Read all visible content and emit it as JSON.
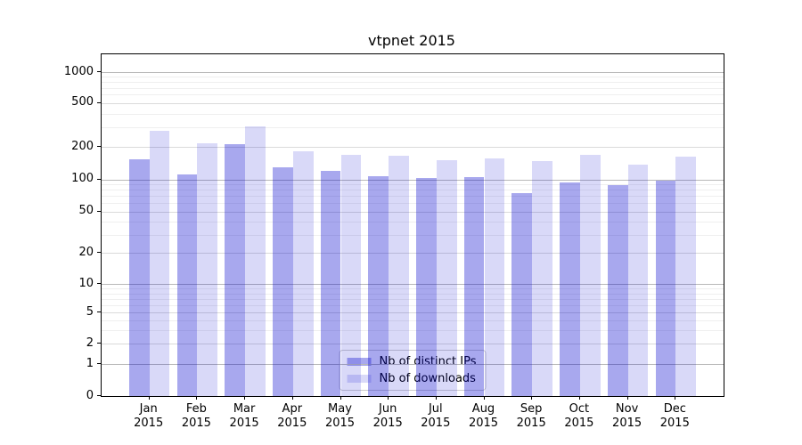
{
  "chart_data": {
    "type": "bar",
    "title": "vtpnet 2015",
    "categories": [
      "Jan",
      "Feb",
      "Mar",
      "Apr",
      "May",
      "Jun",
      "Jul",
      "Aug",
      "Sep",
      "Oct",
      "Nov",
      "Dec"
    ],
    "category_year": "2015",
    "series": [
      {
        "name": "Nb of distinct IPs",
        "color": "rgba(0,0,205,0.34)",
        "values": [
          155,
          112,
          212,
          129,
          120,
          108,
          103,
          106,
          75,
          93,
          89,
          97
        ]
      },
      {
        "name": "Nb of downloads",
        "color": "rgba(0,0,205,0.15)",
        "values": [
          280,
          218,
          306,
          182,
          169,
          166,
          150,
          156,
          148,
          171,
          138,
          164
        ]
      }
    ],
    "yscale": "symlog",
    "ylim": [
      0,
      1450
    ],
    "yticks": [
      1000,
      500,
      200,
      100,
      50,
      20,
      10,
      5,
      2,
      1,
      0
    ],
    "grid": true,
    "legend_position": "lower center"
  }
}
